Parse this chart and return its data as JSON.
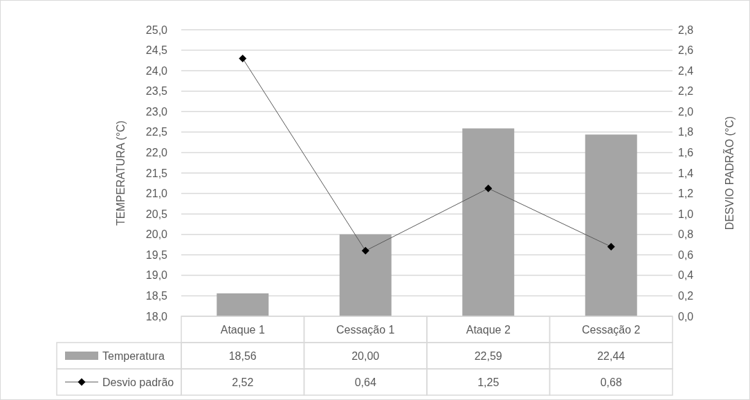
{
  "chart_data": {
    "type": "bar",
    "xlabel": null,
    "ylabel": "TEMPERATURA (°C)",
    "y2label": "DESVIO PADRÃO (°C)",
    "categories": [
      "Ataque 1",
      "Cessação 1",
      "Ataque 2",
      "Cessação 2"
    ],
    "series": [
      {
        "name": "Temperatura",
        "color": "#a5a5a5",
        "values": [
          18.56,
          20.0,
          22.59,
          22.44
        ],
        "value_labels": [
          "18,56",
          "20,00",
          "22,59",
          "22,44"
        ]
      },
      {
        "name": "Desvio padrão",
        "type": "line",
        "axis": "y2",
        "color": "#000000",
        "marker": "diamond",
        "values": [
          2.52,
          0.64,
          1.25,
          0.68
        ],
        "value_labels": [
          "2,52",
          "0,64",
          "1,25",
          "0,68"
        ]
      }
    ],
    "ylim": [
      18,
      25
    ],
    "yticks": [
      {
        "value": 18,
        "label": "18,0"
      },
      {
        "value": 18.5,
        "label": "18,5"
      },
      {
        "value": 19,
        "label": "19,0"
      },
      {
        "value": 19.5,
        "label": "19,5"
      },
      {
        "value": 20,
        "label": "20,0"
      },
      {
        "value": 20.5,
        "label": "20,5"
      },
      {
        "value": 21,
        "label": "21,0"
      },
      {
        "value": 21.5,
        "label": "21,5"
      },
      {
        "value": 22,
        "label": "22,0"
      },
      {
        "value": 22.5,
        "label": "22,5"
      },
      {
        "value": 23,
        "label": "23,0"
      },
      {
        "value": 23.5,
        "label": "23,5"
      },
      {
        "value": 24,
        "label": "24,0"
      },
      {
        "value": 24.5,
        "label": "24,5"
      },
      {
        "value": 25,
        "label": "25,0"
      }
    ],
    "y2lim": [
      0,
      2.8
    ],
    "y2ticks": [
      {
        "value": 0,
        "label": "0,0"
      },
      {
        "value": 0.2,
        "label": "0,2"
      },
      {
        "value": 0.4,
        "label": "0,4"
      },
      {
        "value": 0.6,
        "label": "0,6"
      },
      {
        "value": 0.8,
        "label": "0,8"
      },
      {
        "value": 1,
        "label": "1,0"
      },
      {
        "value": 1.2,
        "label": "1,2"
      },
      {
        "value": 1.4,
        "label": "1,4"
      },
      {
        "value": 1.6,
        "label": "1,6"
      },
      {
        "value": 1.8,
        "label": "1,8"
      },
      {
        "value": 2,
        "label": "2,0"
      },
      {
        "value": 2.2,
        "label": "2,2"
      },
      {
        "value": 2.4,
        "label": "2,4"
      },
      {
        "value": 2.6,
        "label": "2,6"
      },
      {
        "value": 2.8,
        "label": "2,8"
      }
    ],
    "grid": "y",
    "legend": "bottom"
  }
}
